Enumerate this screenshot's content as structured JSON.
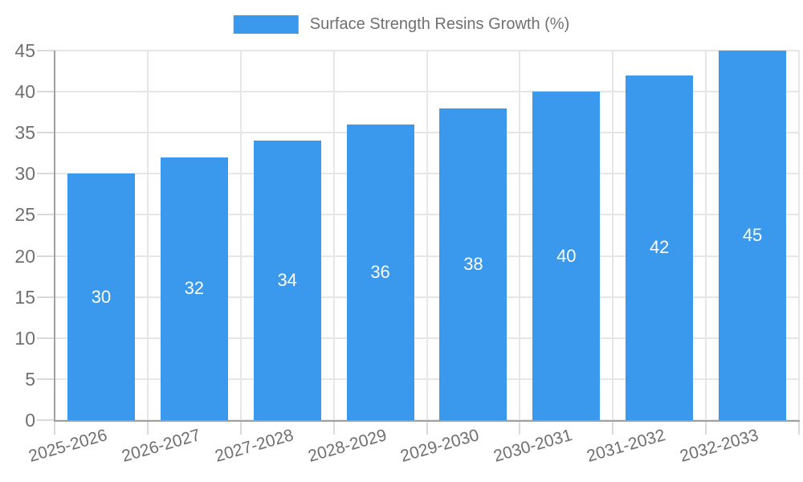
{
  "legend": {
    "label": "Surface Strength Resins Growth (%)"
  },
  "colors": {
    "bar": "#3A99EC",
    "grid": "#E6E6E6",
    "axis": "#A0A0A0",
    "tick": "#D9D9D9",
    "text": "#707070",
    "value_label": "#FFFFFF",
    "background": "#FFFFFF"
  },
  "chart_data": {
    "type": "bar",
    "title": "Surface Strength Resins Growth (%)",
    "categories": [
      "2025-2026",
      "2026-2027",
      "2027-2028",
      "2028-2029",
      "2029-2030",
      "2030-2031",
      "2031-2032",
      "2032-2033"
    ],
    "series": [
      {
        "name": "Surface Strength Resins Growth (%)",
        "values": [
          30,
          32,
          34,
          36,
          38,
          40,
          42,
          45
        ]
      }
    ],
    "xlabel": "",
    "ylabel": "",
    "ylim": [
      0,
      45
    ],
    "yticks": [
      0,
      5,
      10,
      15,
      20,
      25,
      30,
      35,
      40,
      45
    ],
    "grid": true,
    "legend_position": "top-center",
    "value_labels": "inside-center",
    "x_tick_rotation_deg": -16
  }
}
